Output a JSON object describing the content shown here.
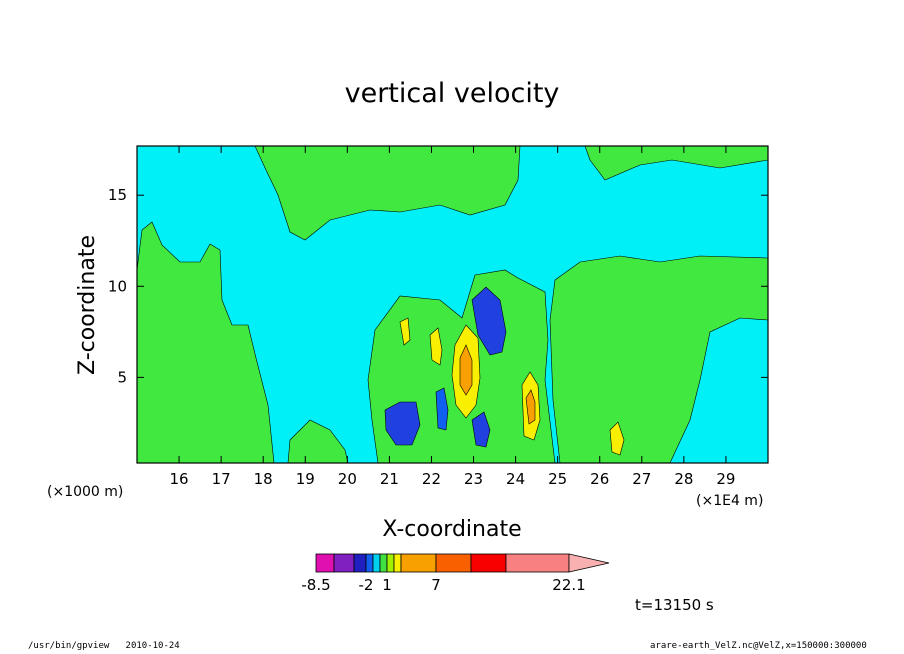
{
  "chart_data": {
    "type": "contour",
    "title": "vertical velocity",
    "xlabel": "X-coordinate",
    "ylabel": "Z-coordinate",
    "x_unit_left": "(×1000 m)",
    "x_unit_right": "(×1E4 m)",
    "x_ticks": [
      16,
      17,
      18,
      19,
      20,
      21,
      22,
      23,
      24,
      25,
      26,
      27,
      28,
      29
    ],
    "xlim": [
      15.0,
      30.0
    ],
    "y_ticks": [
      5,
      10,
      15
    ],
    "ylim": [
      0.3,
      17.7
    ],
    "time_label": "t=13150 s",
    "colorbar": {
      "levels": [
        -8.5,
        -6,
        -4,
        -2,
        -1,
        0,
        1,
        2,
        3,
        7,
        12,
        16,
        22.1
      ],
      "tick_labels": [
        "-8.5",
        "-2",
        "1",
        "7",
        "22.1"
      ],
      "tick_values": [
        -8.5,
        -2,
        1,
        7,
        22.1
      ],
      "colors": [
        "#e010b0",
        "#8020c0",
        "#2020c0",
        "#1060f0",
        "#00d0f0",
        "#40e040",
        "#a0f000",
        "#f8f000",
        "#f8a000",
        "#f86000",
        "#f80000",
        "#f88080"
      ]
    },
    "features": [
      {
        "x": 18.0,
        "y": 10.5,
        "level": 0.5
      },
      {
        "x": 21.0,
        "y": 2.5,
        "level": -5
      },
      {
        "x": 23.0,
        "y": 5.5,
        "level": 7
      },
      {
        "x": 23.0,
        "y": 1.8,
        "level": -6
      },
      {
        "x": 23.5,
        "y": 8.5,
        "level": -6
      },
      {
        "x": 24.3,
        "y": 3.5,
        "level": 3.5
      },
      {
        "x": 22.3,
        "y": 3.0,
        "level": -5
      }
    ]
  },
  "footer": {
    "left": "/usr/bin/gpview   2010-10-24",
    "right": "arare-earth_VelZ.nc@VelZ,x=150000:300000"
  }
}
